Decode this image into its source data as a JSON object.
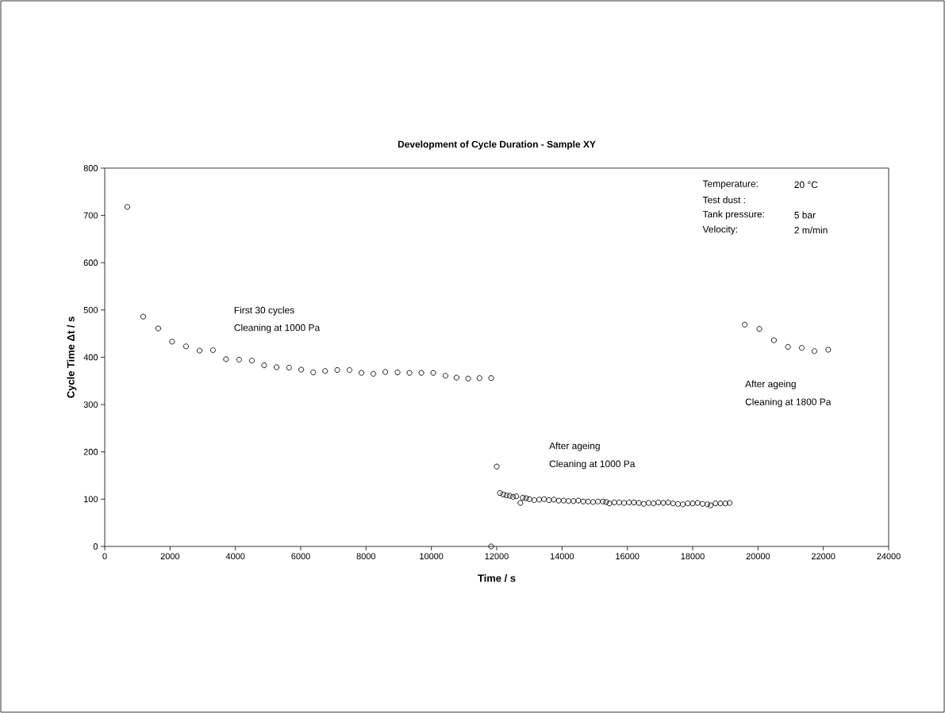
{
  "chart_data": {
    "type": "scatter",
    "title": "Development of Cycle Duration - Sample  XY",
    "xlabel": "Time / s",
    "ylabel": "Cycle Time Δt / s",
    "annotations": [
      "First 30 cycles",
      "Cleaning at 1000 Pa",
      "After ageing",
      "Cleaning at 1000 Pa",
      "After ageing",
      "Cleaning at 1800 Pa",
      "Temperature:",
      "20 °C",
      "Test dust :",
      "Tank pressure:",
      "5 bar",
      "Velocity:",
      "2 m/min"
    ],
    "marker": "circle",
    "xlim": [
      0,
      24000
    ],
    "xticks": [
      0,
      2000,
      4000,
      6000,
      8000,
      10000,
      12000,
      14000,
      16000,
      18000,
      20000,
      22000,
      24000
    ],
    "ylim": [
      0,
      800
    ],
    "yticks": [
      0,
      100,
      200,
      300,
      400,
      500,
      600,
      700,
      800
    ],
    "series": [
      {
        "color": "#000000",
        "x": [
          691,
          1177,
          1637,
          2063,
          2489,
          2905,
          3314,
          3713,
          4114,
          4504,
          4878,
          5260,
          5642,
          6017,
          6382,
          6747,
          7119,
          7494,
          7859,
          8224,
          8589,
          8963,
          9328,
          9693,
          10058,
          10431,
          10769,
          11127,
          11474,
          11830,
          11830,
          12000,
          12100,
          12200,
          12300,
          12400,
          12500,
          12600,
          12725,
          12800,
          12900,
          13000,
          13150,
          13300,
          13450,
          13600,
          13750,
          13900,
          14050,
          14200,
          14350,
          14500,
          14650,
          14800,
          14950,
          15100,
          15250,
          15350,
          15450,
          15600,
          15750,
          15900,
          16050,
          16200,
          16350,
          16500,
          16650,
          16800,
          16950,
          17100,
          17250,
          17400,
          17550,
          17700,
          17850,
          18000,
          18150,
          18300,
          18450,
          18550,
          18700,
          18850,
          19000,
          19130,
          19594,
          20041,
          20487,
          20917,
          21338,
          21727,
          22149
        ],
        "values": [
          718,
          486,
          461,
          433,
          423,
          414,
          415,
          396,
          395,
          393,
          383,
          379,
          378,
          374,
          368,
          371,
          373,
          373,
          367,
          365,
          369,
          368,
          367,
          367,
          367,
          361,
          357,
          355,
          356,
          356,
          0,
          169,
          113,
          110,
          108,
          107,
          105,
          106,
          92,
          103,
          102,
          100,
          98,
          99,
          100,
          98,
          99,
          97,
          97,
          96,
          96,
          97,
          95,
          95,
          94,
          95,
          95,
          94,
          91,
          93,
          93,
          92,
          93,
          93,
          92,
          90,
          92,
          91,
          93,
          92,
          93,
          91,
          90,
          89,
          91,
          91,
          92,
          90,
          89,
          87,
          91,
          91,
          91,
          92,
          469,
          460,
          436,
          422,
          420,
          413,
          416
        ]
      }
    ]
  }
}
